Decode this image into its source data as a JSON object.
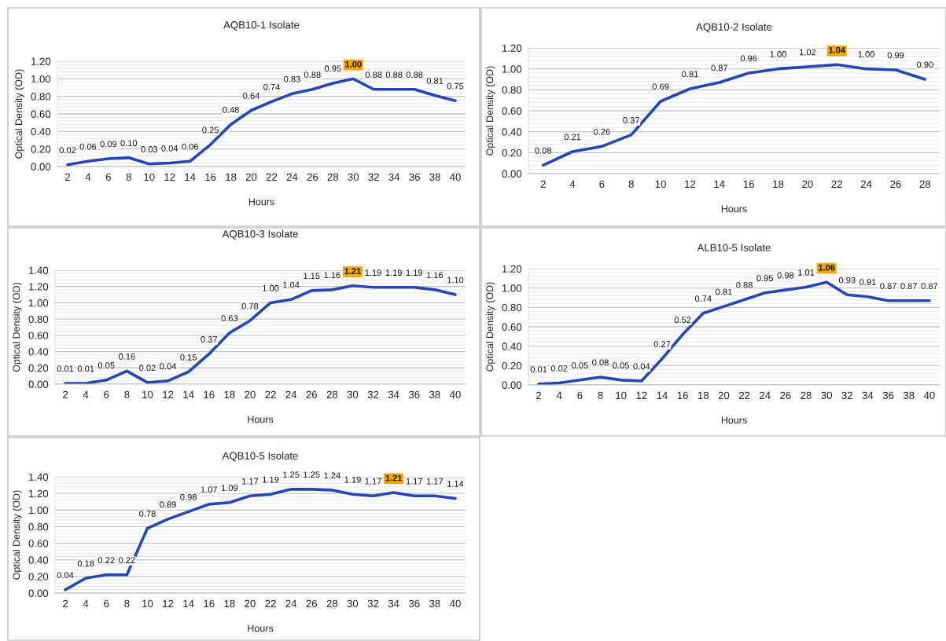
{
  "chart_data": [
    {
      "type": "line",
      "title": "AQB10-1 Isolate",
      "xlabel": "Hours",
      "ylabel": "Optical Density (OD)",
      "grid": "y",
      "marker": "none",
      "line_style": "solid",
      "categories": [
        "2",
        "4",
        "6",
        "8",
        "10",
        "12",
        "14",
        "16",
        "18",
        "20",
        "22",
        "24",
        "26",
        "28",
        "30",
        "32",
        "34",
        "36",
        "38",
        "40"
      ],
      "series": [
        {
          "color": "#2347b5",
          "values": [
            0.02,
            0.06,
            0.09,
            0.1,
            0.03,
            0.04,
            0.06,
            0.25,
            0.48,
            0.64,
            0.74,
            0.83,
            0.88,
            0.95,
            1.0,
            0.88,
            0.88,
            0.88,
            0.81,
            0.75
          ],
          "value_labels": [
            "0.02",
            "0.06",
            "0.09",
            "0.10",
            "0.03",
            "0.04",
            "0.06",
            "0.25",
            "0.48",
            "0.64",
            "0.74",
            "0.83",
            "0.88",
            "0.95",
            null,
            "0.88",
            "0.88",
            "0.88",
            "0.81",
            "0.75"
          ]
        }
      ],
      "annotations": [
        {
          "text": "1.00",
          "x": "30",
          "y": 1.0
        }
      ],
      "ylim": [
        0,
        1.2
      ],
      "yticks": [
        {
          "value": 0,
          "label": "0.00"
        },
        {
          "value": 0.2,
          "label": "0.20"
        },
        {
          "value": 0.4,
          "label": "0.40"
        },
        {
          "value": 0.6,
          "label": "0.60"
        },
        {
          "value": 0.8,
          "label": "0.80"
        },
        {
          "value": 1.0,
          "label": "1.00"
        },
        {
          "value": 1.2,
          "label": "1.20"
        }
      ]
    },
    {
      "type": "line",
      "title": "AQB10-2 Isolate",
      "xlabel": "Hours",
      "ylabel": "Optical Density (OD)",
      "grid": "y",
      "marker": "none",
      "line_style": "solid",
      "categories": [
        "2",
        "4",
        "6",
        "8",
        "10",
        "12",
        "14",
        "16",
        "18",
        "20",
        "22",
        "24",
        "26",
        "28"
      ],
      "series": [
        {
          "color": "#2347b5",
          "values": [
            0.08,
            0.21,
            0.26,
            0.37,
            0.69,
            0.81,
            0.87,
            0.96,
            1.0,
            1.02,
            1.04,
            1.0,
            0.99,
            0.9
          ],
          "value_labels": [
            "0.08",
            "0.21",
            "0.26",
            "0.37",
            "0.69",
            "0.81",
            "0.87",
            "0.96",
            "1.00",
            "1.02",
            null,
            "1.00",
            "0.99",
            "0.90"
          ]
        }
      ],
      "annotations": [
        {
          "text": "1.04",
          "x": "22",
          "y": 1.04
        }
      ],
      "ylim": [
        0,
        1.2
      ],
      "yticks": [
        {
          "value": 0,
          "label": "0.00"
        },
        {
          "value": 0.2,
          "label": "0.20"
        },
        {
          "value": 0.4,
          "label": "0.40"
        },
        {
          "value": 0.6,
          "label": "0.60"
        },
        {
          "value": 0.8,
          "label": "0.80"
        },
        {
          "value": 1.0,
          "label": "1.00"
        },
        {
          "value": 1.2,
          "label": "1.20"
        }
      ]
    },
    {
      "type": "line",
      "title": "AQB10-3 Isolate",
      "xlabel": "Hours",
      "ylabel": "Optical Density (OD)",
      "grid": "y",
      "marker": "none",
      "line_style": "solid",
      "categories": [
        "2",
        "4",
        "6",
        "8",
        "10",
        "12",
        "14",
        "16",
        "18",
        "20",
        "22",
        "24",
        "26",
        "28",
        "30",
        "32",
        "34",
        "36",
        "38",
        "40"
      ],
      "series": [
        {
          "color": "#2347b5",
          "values": [
            0.01,
            0.01,
            0.05,
            0.16,
            0.02,
            0.04,
            0.15,
            0.37,
            0.63,
            0.78,
            1.0,
            1.04,
            1.15,
            1.16,
            1.21,
            1.19,
            1.19,
            1.19,
            1.16,
            1.1
          ],
          "value_labels": [
            "0.01",
            "0.01",
            "0.05",
            "0.16",
            "0.02",
            "0.04",
            "0.15",
            "0.37",
            "0.63",
            "0.78",
            "1.00",
            "1.04",
            "1.15",
            "1.16",
            null,
            "1.19",
            "1.19",
            "1.19",
            "1.16",
            "1.10"
          ]
        }
      ],
      "annotations": [
        {
          "text": "1.21",
          "x": "30",
          "y": 1.21
        }
      ],
      "ylim": [
        0,
        1.4
      ],
      "yticks": [
        {
          "value": 0,
          "label": "0.00"
        },
        {
          "value": 0.2,
          "label": "0.20"
        },
        {
          "value": 0.4,
          "label": "0.40"
        },
        {
          "value": 0.6,
          "label": "0.60"
        },
        {
          "value": 0.8,
          "label": "0.80"
        },
        {
          "value": 1.0,
          "label": "1.00"
        },
        {
          "value": 1.2,
          "label": "1.20"
        },
        {
          "value": 1.4,
          "label": "1.40"
        }
      ]
    },
    {
      "type": "line",
      "title": "ALB10-5 Isolate",
      "xlabel": "Hours",
      "ylabel": "Optical Density (OD)",
      "grid": "y",
      "marker": "none",
      "line_style": "solid",
      "categories": [
        "2",
        "4",
        "6",
        "8",
        "10",
        "12",
        "14",
        "16",
        "18",
        "20",
        "22",
        "24",
        "26",
        "28",
        "30",
        "32",
        "34",
        "36",
        "38",
        "40"
      ],
      "series": [
        {
          "color": "#2347b5",
          "values": [
            0.01,
            0.02,
            0.05,
            0.08,
            0.05,
            0.04,
            0.27,
            0.52,
            0.74,
            0.81,
            0.88,
            0.95,
            0.98,
            1.01,
            1.06,
            0.93,
            0.91,
            0.87,
            0.87,
            0.87
          ],
          "value_labels": [
            "0.01",
            "0.02",
            "0.05",
            "0.08",
            "0.05",
            "0.04",
            "0.27",
            "0.52",
            "0.74",
            "0.81",
            "0.88",
            "0.95",
            "0.98",
            "1.01",
            null,
            "0.93",
            "0.91",
            "0.87",
            "0.87",
            "0.87"
          ]
        }
      ],
      "annotations": [
        {
          "text": "1.06",
          "x": "30",
          "y": 1.06
        }
      ],
      "ylim": [
        0,
        1.2
      ],
      "yticks": [
        {
          "value": 0,
          "label": "0.00"
        },
        {
          "value": 0.2,
          "label": "0.20"
        },
        {
          "value": 0.4,
          "label": "0.40"
        },
        {
          "value": 0.6,
          "label": "0.60"
        },
        {
          "value": 0.8,
          "label": "0.80"
        },
        {
          "value": 1.0,
          "label": "1.00"
        },
        {
          "value": 1.2,
          "label": "1.20"
        }
      ]
    },
    {
      "type": "line",
      "title": "AQB10-5 Isolate",
      "xlabel": "Hours",
      "ylabel": "Optical Density (OD)",
      "grid": "y",
      "marker": "none",
      "line_style": "solid",
      "categories": [
        "2",
        "4",
        "6",
        "8",
        "10",
        "12",
        "14",
        "16",
        "18",
        "20",
        "22",
        "24",
        "26",
        "28",
        "30",
        "32",
        "34",
        "36",
        "38",
        "40"
      ],
      "series": [
        {
          "color": "#2347b5",
          "values": [
            0.04,
            0.18,
            0.22,
            0.22,
            0.78,
            0.89,
            0.98,
            1.07,
            1.09,
            1.17,
            1.19,
            1.25,
            1.25,
            1.24,
            1.19,
            1.17,
            1.21,
            1.17,
            1.17,
            1.14
          ],
          "value_labels": [
            "0.04",
            "0.18",
            "0.22",
            "0.22",
            "0.78",
            "0.89",
            "0.98",
            "1.07",
            "1.09",
            "1.17",
            "1.19",
            "1.25",
            "1.25",
            "1.24",
            "1.19",
            "1.17",
            null,
            "1.17",
            "1.17",
            "1.14"
          ]
        }
      ],
      "annotations": [
        {
          "text": "1.21",
          "x": "34",
          "y": 1.21
        }
      ],
      "ylim": [
        0,
        1.4
      ],
      "yticks": [
        {
          "value": 0,
          "label": "0.00"
        },
        {
          "value": 0.2,
          "label": "0.20"
        },
        {
          "value": 0.4,
          "label": "0.40"
        },
        {
          "value": 0.6,
          "label": "0.60"
        },
        {
          "value": 0.8,
          "label": "0.80"
        },
        {
          "value": 1.0,
          "label": "1.00"
        },
        {
          "value": 1.2,
          "label": "1.20"
        },
        {
          "value": 1.4,
          "label": "1.40"
        }
      ]
    }
  ]
}
